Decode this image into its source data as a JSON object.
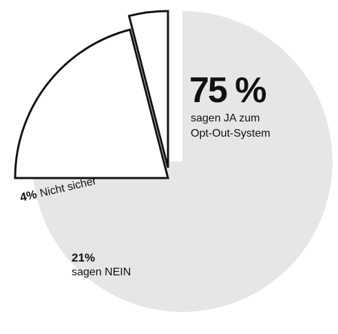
{
  "chart_data": {
    "type": "pie",
    "slices": [
      {
        "value_label": "75 %",
        "text": [
          "sagen JA zum",
          "Opt-Out-System"
        ],
        "value": 75,
        "color": "#e6e6e6"
      },
      {
        "value_label": "21%",
        "text": [
          "sagen NEIN"
        ],
        "value": 21,
        "color": "#ffffff"
      },
      {
        "value_label": "4%",
        "text": [
          "Nicht sicher"
        ],
        "value": 4,
        "color": "#ffffff"
      }
    ]
  }
}
